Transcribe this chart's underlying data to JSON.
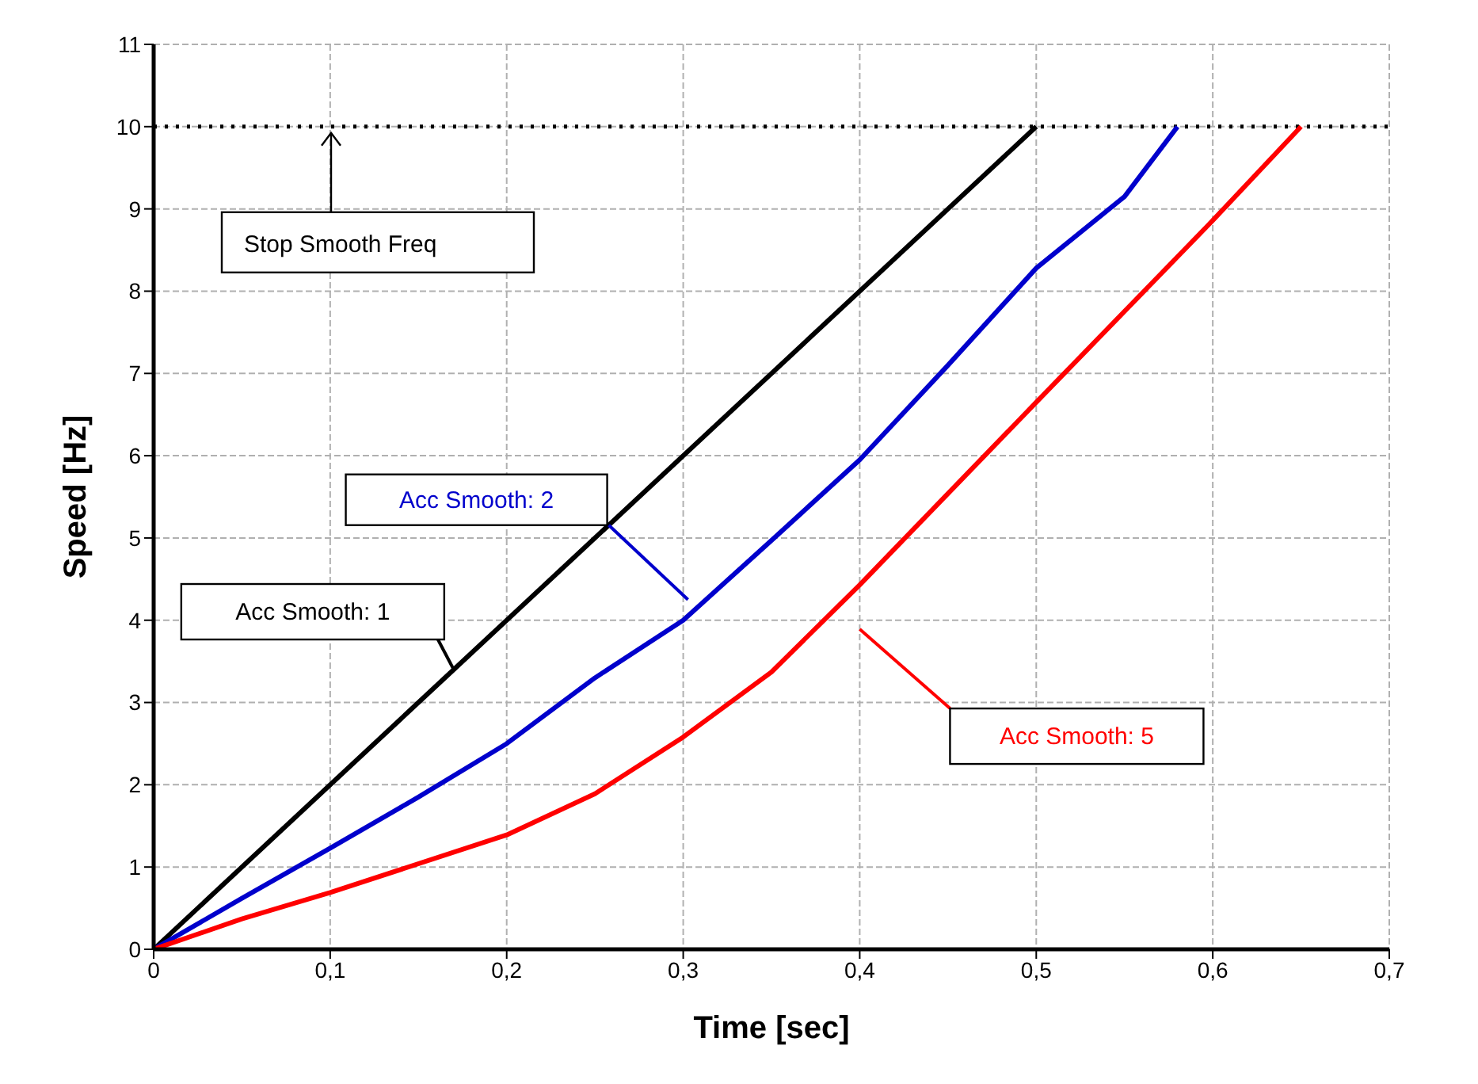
{
  "chart_data": {
    "type": "line",
    "xlabel": "Time [sec]",
    "ylabel": "Speed [Hz]",
    "xlim": [
      0,
      0.7
    ],
    "xticks": [
      0,
      {
        "value": 0.1,
        "label": "0,1"
      },
      {
        "value": 0.2,
        "label": "0,2"
      },
      {
        "value": 0.3,
        "label": "0,3"
      },
      {
        "value": 0.4,
        "label": "0,4"
      },
      {
        "value": 0.5,
        "label": "0,5"
      },
      {
        "value": 0.6,
        "label": "0,6"
      },
      {
        "value": 0.7,
        "label": "0,7"
      }
    ],
    "ylim": [
      0,
      11
    ],
    "yticks": [
      0,
      1,
      2,
      3,
      4,
      5,
      6,
      7,
      8,
      9,
      10,
      11
    ],
    "grid": true,
    "legend": false,
    "marker": "none",
    "line_style": "solid",
    "ref_lines": [
      {
        "axis": "y",
        "value": 10,
        "label": "Stop Smooth Freq",
        "color": "#000000",
        "line_style": "dotted"
      }
    ],
    "series": [
      {
        "name": "Acc Smooth: 1",
        "color": "#000000",
        "x": [
          0,
          0.17,
          0.5
        ],
        "values": [
          0,
          3.4,
          10
        ]
      },
      {
        "name": "Acc Smooth: 2",
        "color": "#0000cc",
        "x": [
          0,
          0.05,
          0.1,
          0.15,
          0.2,
          0.25,
          0.3,
          0.35,
          0.4,
          0.45,
          0.5,
          0.55,
          0.58
        ],
        "values": [
          0,
          0.62,
          1.23,
          1.85,
          2.5,
          3.3,
          4.0,
          4.97,
          5.95,
          7.1,
          8.28,
          9.15,
          10
        ]
      },
      {
        "name": "Acc Smooth: 5",
        "color": "#ff0000",
        "x": [
          0,
          0.05,
          0.1,
          0.2,
          0.25,
          0.3,
          0.35,
          0.4,
          0.5,
          0.6,
          0.65
        ],
        "values": [
          0,
          0.37,
          0.69,
          1.39,
          1.89,
          2.58,
          3.37,
          4.43,
          6.65,
          8.86,
          10
        ]
      }
    ]
  }
}
